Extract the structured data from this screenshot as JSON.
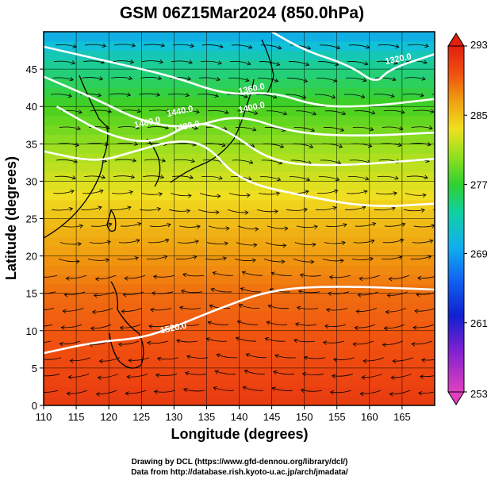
{
  "chart_data": {
    "type": "heatmap",
    "title": "GSM 06Z15Mar2024 (850.0hPa)",
    "xlabel": "Longitude (degrees)",
    "ylabel": "Latitude  (degrees)",
    "xlim": [
      110,
      170
    ],
    "ylim": [
      0,
      50
    ],
    "x_ticks": [
      "110",
      "115",
      "120",
      "125",
      "130",
      "135",
      "140",
      "145",
      "150",
      "155",
      "160",
      "165"
    ],
    "y_ticks": [
      "0",
      "5",
      "10",
      "15",
      "20",
      "25",
      "30",
      "35",
      "40",
      "45"
    ],
    "grid": true,
    "colorbar": {
      "min": 253,
      "max": 293,
      "tick_labels": [
        "293",
        "285",
        "277",
        "269",
        "261",
        "253"
      ],
      "colors": [
        "#e040c0",
        "#8020d0",
        "#1020d0",
        "#1080f0",
        "#10c0e0",
        "#20d080",
        "#40d020",
        "#a0e020",
        "#f0e020",
        "#f0a010",
        "#f05010",
        "#e02010"
      ]
    },
    "temperature_bands": [
      {
        "lat": 0,
        "value": 291
      },
      {
        "lat": 5,
        "value": 290
      },
      {
        "lat": 10,
        "value": 289
      },
      {
        "lat": 15,
        "value": 288
      },
      {
        "lat": 20,
        "value": 286
      },
      {
        "lat": 25,
        "value": 284
      },
      {
        "lat": 30,
        "value": 281
      },
      {
        "lat": 35,
        "value": 278
      },
      {
        "lat": 40,
        "value": 275
      },
      {
        "lat": 45,
        "value": 271
      },
      {
        "lat": 50,
        "value": 266
      }
    ],
    "contours": [
      {
        "label": "1320.0",
        "points": [
          [
            145,
            50
          ],
          [
            150,
            47.5
          ],
          [
            157,
            45.5
          ],
          [
            161,
            43
          ],
          [
            163,
            45
          ],
          [
            170,
            47
          ]
        ]
      },
      {
        "label": "1360.0",
        "points": [
          [
            110,
            48
          ],
          [
            120,
            46
          ],
          [
            130,
            44
          ],
          [
            138,
            41.5
          ],
          [
            145,
            42
          ],
          [
            152,
            40
          ],
          [
            160,
            40
          ],
          [
            170,
            41
          ]
        ]
      },
      {
        "label": "1400.0",
        "points": [
          [
            110,
            44
          ],
          [
            118,
            41
          ],
          [
            125,
            38
          ],
          [
            132,
            37
          ],
          [
            140,
            39
          ],
          [
            148,
            36.5
          ],
          [
            158,
            36
          ],
          [
            170,
            36.5
          ]
        ]
      },
      {
        "label": "1440.0",
        "points": [
          [
            112,
            40
          ],
          [
            120,
            36
          ],
          [
            127,
            35
          ],
          [
            133,
            38
          ],
          [
            138,
            37
          ],
          [
            145,
            32.5
          ],
          [
            155,
            32
          ],
          [
            170,
            33
          ]
        ]
      },
      {
        "label": "1480.0",
        "points": [
          [
            110,
            34
          ],
          [
            118,
            32.5
          ],
          [
            124,
            34
          ],
          [
            130,
            35.5
          ],
          [
            135,
            35
          ],
          [
            140,
            30
          ],
          [
            150,
            28
          ],
          [
            160,
            26.5
          ],
          [
            170,
            27
          ]
        ]
      },
      {
        "label": "1520.0",
        "points": [
          [
            110,
            7
          ],
          [
            118,
            8.5
          ],
          [
            125,
            9
          ],
          [
            130,
            10.5
          ],
          [
            137,
            13
          ],
          [
            145,
            15.5
          ],
          [
            155,
            16
          ],
          [
            170,
            15.5
          ]
        ]
      }
    ],
    "contour_labels": [
      {
        "text": "1320.0",
        "lon": 164.5,
        "lat": 46
      },
      {
        "text": "1360.0",
        "lon": 142,
        "lat": 42
      },
      {
        "text": "1400.0",
        "lon": 142,
        "lat": 39.5
      },
      {
        "text": "1440.0",
        "lon": 131,
        "lat": 39
      },
      {
        "text": "1480.0",
        "lon": 132,
        "lat": 37
      },
      {
        "text": "1480.0",
        "lon": 126,
        "lat": 37.5
      },
      {
        "text": "1520.0",
        "lon": 130,
        "lat": 10
      }
    ]
  },
  "credits": {
    "line1": "Drawing by DCL (https://www.gfd-dennou.org/library/dcl/)",
    "line2": "Data from http://database.rish.kyoto-u.ac.jp/arch/jmadata/"
  }
}
